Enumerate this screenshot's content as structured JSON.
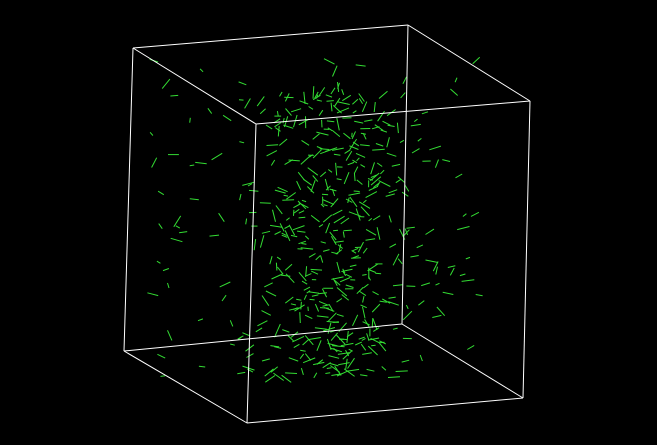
{
  "scene": {
    "background_color": "#000000",
    "box_color": "#ffffff",
    "glyph_color": "#33dd33",
    "glyph_count": 520
  }
}
